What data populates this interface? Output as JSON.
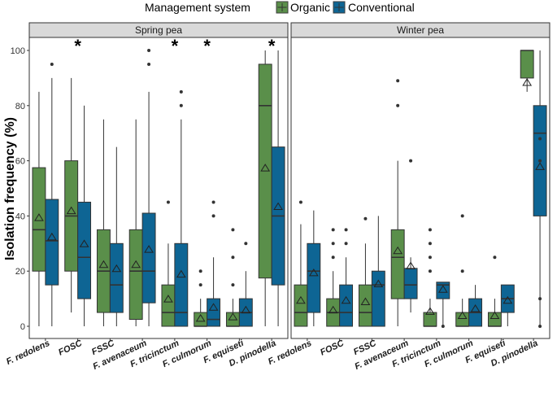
{
  "chart_data": {
    "type": "box",
    "ylabel": "Isolation frequency (%)",
    "ylim": [
      0,
      100
    ],
    "yticks": [
      0,
      20,
      40,
      60,
      80,
      100
    ],
    "legend": {
      "title": "Management system",
      "position": "top",
      "entries": [
        {
          "name": "Organic",
          "color": "#5a8f4a"
        },
        {
          "name": "Conventional",
          "color": "#0e6594"
        }
      ]
    },
    "categories": [
      "F. redolens",
      "FOSC",
      "FSSC",
      "F. avenaceum",
      "F. tricinctum",
      "F. culmorum",
      "F. equiseti",
      "D. pinodella"
    ],
    "panels": [
      {
        "name": "Spring pea",
        "significant": [
          false,
          true,
          false,
          false,
          true,
          true,
          false,
          true
        ],
        "series": [
          {
            "name": "Organic",
            "boxes": [
              {
                "lw": 0,
                "q1": 20,
                "med": 35,
                "q3": 57.5,
                "uw": 85,
                "mean": 39.5,
                "out": []
              },
              {
                "lw": 5,
                "q1": 20,
                "med": 40,
                "q3": 60,
                "uw": 90,
                "mean": 42,
                "out": []
              },
              {
                "lw": 0,
                "q1": 5,
                "med": 20,
                "q3": 35,
                "uw": 75,
                "mean": 22.5,
                "out": []
              },
              {
                "lw": 0,
                "q1": 2.5,
                "med": 20,
                "q3": 35,
                "uw": 75,
                "mean": 22.5,
                "out": []
              },
              {
                "lw": 0,
                "q1": 0,
                "med": 5,
                "q3": 15,
                "uw": 30,
                "mean": 10,
                "out": [
                  45
                ]
              },
              {
                "lw": 0,
                "q1": 0,
                "med": 0,
                "q3": 5,
                "uw": 10,
                "mean": 3,
                "out": [
                  15,
                  20
                ]
              },
              {
                "lw": 0,
                "q1": 0,
                "med": 0,
                "q3": 5,
                "uw": 10,
                "mean": 3.5,
                "out": [
                  15,
                  25,
                  35
                ]
              },
              {
                "lw": 0,
                "q1": 17.5,
                "med": 80,
                "q3": 95,
                "uw": 100,
                "mean": 57.5,
                "out": []
              }
            ]
          },
          {
            "name": "Conventional",
            "boxes": [
              {
                "lw": 0,
                "q1": 15,
                "med": 31,
                "q3": 46,
                "uw": 90,
                "mean": 32.5,
                "out": [
                  95
                ]
              },
              {
                "lw": 0,
                "q1": 10,
                "med": 25,
                "q3": 45,
                "uw": 80,
                "mean": 30,
                "out": []
              },
              {
                "lw": 0,
                "q1": 5,
                "med": 15,
                "q3": 30,
                "uw": 65,
                "mean": 21,
                "out": []
              },
              {
                "lw": 0,
                "q1": 8.5,
                "med": 20,
                "q3": 41,
                "uw": 85,
                "mean": 28,
                "out": [
                  95,
                  100
                ]
              },
              {
                "lw": 0,
                "q1": 0,
                "med": 5,
                "q3": 30,
                "uw": 75,
                "mean": 19,
                "out": [
                  80,
                  85
                ]
              },
              {
                "lw": 0,
                "q1": 0,
                "med": 2.5,
                "q3": 10,
                "uw": 25,
                "mean": 7,
                "out": [
                  40,
                  45
                ]
              },
              {
                "lw": 0,
                "q1": 0,
                "med": 5,
                "q3": 10,
                "uw": 20,
                "mean": 6,
                "out": [
                  30
                ]
              },
              {
                "lw": 0,
                "q1": 15,
                "med": 40,
                "q3": 65,
                "uw": 100,
                "mean": 43.5,
                "out": []
              }
            ]
          }
        ]
      },
      {
        "name": "Winter pea",
        "significant": [
          false,
          false,
          false,
          false,
          false,
          false,
          false,
          false
        ],
        "series": [
          {
            "name": "Organic",
            "boxes": [
              {
                "lw": 0,
                "q1": 0,
                "med": 5,
                "q3": 15,
                "uw": 37,
                "mean": 9.5,
                "out": [
                  45
                ]
              },
              {
                "lw": 0,
                "q1": 0,
                "med": 5,
                "q3": 10,
                "uw": 20,
                "mean": 6,
                "out": [
                  25,
                  30,
                  35
                ]
              },
              {
                "lw": 0,
                "q1": 0,
                "med": 5,
                "q3": 15,
                "uw": 30,
                "mean": 9,
                "out": [
                  39
                ]
              },
              {
                "lw": 0,
                "q1": 10,
                "med": 25,
                "q3": 35,
                "uw": 60,
                "mean": 27.5,
                "out": [
                  80,
                  89
                ]
              },
              {
                "lw": 0,
                "q1": 0,
                "med": 0,
                "q3": 5,
                "uw": 10,
                "mean": 5.5,
                "out": [
                  20,
                  25,
                  30,
                  35
                ]
              },
              {
                "lw": 0,
                "q1": 0,
                "med": 0,
                "q3": 5,
                "uw": 10,
                "mean": 4,
                "out": [
                  20,
                  40
                ]
              },
              {
                "lw": 0,
                "q1": 0,
                "med": 0,
                "q3": 5,
                "uw": 10,
                "mean": 4,
                "out": [
                  25
                ]
              },
              {
                "lw": 85,
                "q1": 90,
                "med": 100,
                "q3": 100,
                "uw": 100,
                "mean": 88.5,
                "out": []
              }
            ]
          },
          {
            "name": "Conventional",
            "boxes": [
              {
                "lw": 0,
                "q1": 5,
                "med": 20,
                "q3": 30,
                "uw": 42,
                "mean": 19.5,
                "out": []
              },
              {
                "lw": 0,
                "q1": 0,
                "med": 5,
                "q3": 15,
                "uw": 25,
                "mean": 9.5,
                "out": [
                  30,
                  35
                ]
              },
              {
                "lw": 0,
                "q1": 0,
                "med": 15,
                "q3": 20,
                "uw": 40,
                "mean": 15.5,
                "out": []
              },
              {
                "lw": 5,
                "q1": 10,
                "med": 15,
                "q3": 21,
                "uw": 25,
                "mean": 22,
                "out": [
                  60
                ]
              },
              {
                "lw": 0,
                "q1": 10,
                "med": 15,
                "q3": 16,
                "uw": 16,
                "mean": 13.5,
                "out": [
                  0
                ]
              },
              {
                "lw": 0,
                "q1": 0,
                "med": 5,
                "q3": 10,
                "uw": 15,
                "mean": 6.5,
                "out": []
              },
              {
                "lw": 0,
                "q1": 5,
                "med": 10,
                "q3": 15,
                "uw": 15,
                "mean": 9.5,
                "out": []
              },
              {
                "lw": 0,
                "q1": 40,
                "med": 70,
                "q3": 80,
                "uw": 100,
                "mean": 58,
                "out": [
                  0,
                  10,
                  60,
                  68
                ]
              }
            ]
          }
        ]
      }
    ],
    "significance_marker": "*"
  }
}
